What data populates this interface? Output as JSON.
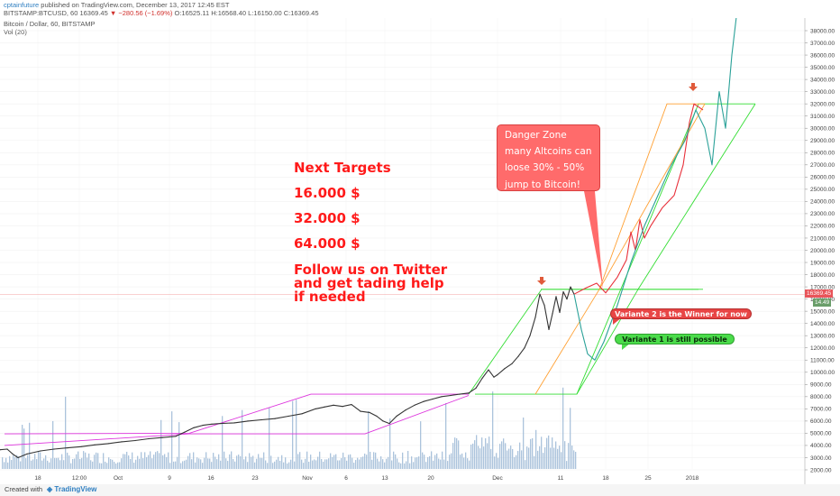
{
  "header": {
    "user": "cptainfuture",
    "published": " published on TradingView.com, December 13, 2017 12:45 EST",
    "symbol": "BITSTAMP:BTCUSD, 60  16369.45",
    "change": "▼ −280.56 (−1.69%)",
    "ohlc": " O:16525.11  H:16568.40  L:16150.00  C:16369.45",
    "title": "Bitcoin / Dollar, 60, BITSTAMP",
    "volume": "Vol (20)"
  },
  "annotations": {
    "targets_title": "Next Targets",
    "target_1": "16.000 $",
    "target_2": "32.000 $",
    "target_3": "64.000 $",
    "follow_line_1": "Follow us on Twitter",
    "follow_line_2": "and get tading help",
    "follow_line_3": "if needed",
    "danger_line_1": "Danger Zone",
    "danger_line_2": "many Altcoins can",
    "danger_line_3": "loose 30% - 50%",
    "danger_line_4": "jump to Bitcoin!",
    "variante_2": "Variante 2 is the Winner for now",
    "variante_1": "Variante 1 is still possible"
  },
  "price_tags": {
    "last": "16369.45",
    "volume": "14.49"
  },
  "footer": {
    "created": "Created with",
    "brand": "TradingView"
  },
  "colors": {
    "price_line": "#333333",
    "green_channel": "#33dd33",
    "magenta_channel": "#dd33dd",
    "orange_channel": "#ffa033",
    "teal_projection": "#2aa198",
    "red_projection": "#e8303a",
    "volume_bars": "#9cb9d6",
    "target_text": "#ff1a1a"
  },
  "chart_data": {
    "type": "line",
    "title": "Bitcoin / Dollar, 60, BITSTAMP",
    "xlabel": "",
    "ylabel": "",
    "ylim": [
      2000,
      39000
    ],
    "x_ticks": [
      "18",
      "12:00",
      "Oct",
      "9",
      "16",
      "23",
      "Nov",
      "6",
      "13",
      "20",
      "Dec",
      "11",
      "18",
      "25",
      "2018"
    ],
    "y_ticks": [
      2000,
      3000,
      4000,
      5000,
      6000,
      7000,
      8000,
      9000,
      10000,
      11000,
      12000,
      13000,
      14000,
      15000,
      16000,
      17000,
      18000,
      19000,
      20000,
      21000,
      22000,
      23000,
      24000,
      25000,
      26000,
      27000,
      28000,
      29000,
      30000,
      31000,
      32000,
      33000,
      34000,
      35000,
      36000,
      37000,
      38000
    ],
    "series": [
      {
        "values": [
          [
            0,
            3650
          ],
          [
            8,
            3700
          ],
          [
            14,
            3300
          ],
          [
            20,
            3000
          ],
          [
            30,
            3300
          ],
          [
            45,
            3550
          ],
          [
            60,
            3700
          ],
          [
            75,
            3800
          ],
          [
            90,
            3900
          ],
          [
            105,
            4050
          ],
          [
            120,
            4150
          ],
          [
            135,
            4300
          ],
          [
            150,
            4400
          ],
          [
            165,
            4550
          ],
          [
            180,
            4650
          ],
          [
            195,
            4750
          ],
          [
            205,
            5100
          ],
          [
            215,
            5450
          ],
          [
            225,
            5650
          ],
          [
            235,
            5750
          ],
          [
            245,
            5800
          ],
          [
            260,
            5850
          ],
          [
            275,
            6000
          ],
          [
            290,
            6100
          ],
          [
            305,
            6200
          ],
          [
            320,
            6400
          ],
          [
            335,
            6600
          ],
          [
            350,
            7000
          ],
          [
            360,
            7150
          ],
          [
            370,
            7300
          ],
          [
            380,
            7200
          ],
          [
            390,
            7350
          ],
          [
            400,
            6800
          ],
          [
            410,
            6700
          ],
          [
            418,
            6400
          ],
          [
            425,
            6000
          ],
          [
            432,
            5800
          ],
          [
            440,
            6400
          ],
          [
            450,
            6900
          ],
          [
            460,
            7300
          ],
          [
            470,
            7600
          ],
          [
            480,
            7800
          ],
          [
            490,
            8000
          ],
          [
            500,
            8100
          ],
          [
            510,
            8200
          ],
          [
            520,
            8300
          ],
          [
            528,
            8700
          ],
          [
            535,
            9500
          ],
          [
            542,
            10200
          ],
          [
            548,
            9600
          ],
          [
            552,
            9800
          ],
          [
            560,
            10300
          ],
          [
            568,
            10700
          ],
          [
            575,
            11300
          ],
          [
            582,
            12000
          ],
          [
            588,
            13000
          ],
          [
            594,
            14500
          ],
          [
            599,
            16400
          ],
          [
            604,
            15500
          ],
          [
            609,
            13500
          ],
          [
            613,
            14800
          ],
          [
            617,
            16200
          ],
          [
            621,
            14900
          ],
          [
            625,
            16600
          ],
          [
            629,
            16000
          ],
          [
            633,
            17000
          ],
          [
            637,
            16400
          ]
        ]
      }
    ],
    "projections": [
      {
        "name": "red",
        "points": [
          [
            637,
            16400
          ],
          [
            650,
            16900
          ],
          [
            662,
            17300
          ],
          [
            672,
            16500
          ],
          [
            685,
            17800
          ],
          [
            695,
            19200
          ],
          [
            700,
            21500
          ],
          [
            705,
            20000
          ],
          [
            710,
            22500
          ],
          [
            715,
            21000
          ],
          [
            722,
            22000
          ],
          [
            735,
            23500
          ],
          [
            748,
            24500
          ],
          [
            758,
            27000
          ],
          [
            765,
            30500
          ],
          [
            770,
            32000
          ],
          [
            780,
            31500
          ]
        ]
      },
      {
        "name": "teal",
        "points": [
          [
            637,
            16400
          ],
          [
            645,
            13500
          ],
          [
            652,
            11500
          ],
          [
            660,
            11000
          ],
          [
            670,
            12500
          ],
          [
            685,
            15500
          ],
          [
            700,
            19000
          ],
          [
            715,
            22000
          ],
          [
            730,
            24500
          ],
          [
            745,
            27000
          ],
          [
            760,
            29000
          ],
          [
            772,
            31500
          ],
          [
            782,
            30000
          ],
          [
            790,
            27000
          ],
          [
            798,
            33000
          ],
          [
            805,
            30000
          ],
          [
            812,
            36000
          ],
          [
            820,
            41000
          ]
        ]
      }
    ]
  }
}
